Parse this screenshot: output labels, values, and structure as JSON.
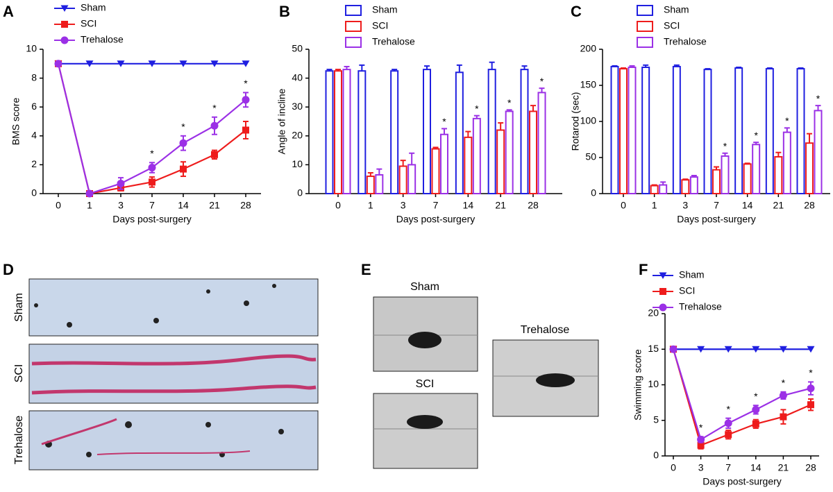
{
  "chart_data": [
    {
      "type": "line",
      "panel": "A",
      "ylabel": "BMS score",
      "xlabel": "Days post-surgery",
      "categories": [
        "0",
        "1",
        "3",
        "7",
        "14",
        "21",
        "28"
      ],
      "ylim": [
        0,
        10
      ],
      "yticks": [
        0,
        2,
        4,
        6,
        8,
        10
      ],
      "series": [
        {
          "name": "Sham",
          "color": "#1f1fe0",
          "marker": "triangle-down",
          "values": [
            9,
            9,
            9,
            9,
            9,
            9,
            9
          ]
        },
        {
          "name": "SCI",
          "color": "#ee1c1c",
          "marker": "square",
          "values": [
            9,
            0,
            0.4,
            0.8,
            1.7,
            2.7,
            4.4
          ],
          "errors": [
            0,
            0,
            0.2,
            0.35,
            0.5,
            0.3,
            0.6
          ]
        },
        {
          "name": "Trehalose",
          "color": "#9b30e6",
          "marker": "circle",
          "values": [
            9,
            0,
            0.7,
            1.8,
            3.5,
            4.7,
            6.5
          ],
          "errors": [
            0,
            0,
            0.4,
            0.35,
            0.5,
            0.6,
            0.5
          ],
          "significance": [
            null,
            null,
            null,
            "*",
            "*",
            "*",
            "*"
          ]
        }
      ]
    },
    {
      "type": "bar",
      "panel": "B",
      "ylabel": "Angle of incline",
      "xlabel": "Days post-surgery",
      "categories": [
        "0",
        "1",
        "3",
        "7",
        "14",
        "21",
        "28"
      ],
      "ylim": [
        0,
        50
      ],
      "yticks": [
        0,
        10,
        20,
        30,
        40,
        50
      ],
      "series": [
        {
          "name": "Sham",
          "color": "#1f1fe0",
          "values": [
            42.5,
            42.5,
            42.5,
            43,
            42,
            43,
            43
          ],
          "errors": [
            0.5,
            2,
            0.5,
            1.2,
            2.5,
            2.5,
            1.2
          ]
        },
        {
          "name": "SCI",
          "color": "#ee1c1c",
          "values": [
            42.5,
            6,
            9.5,
            15.5,
            19.5,
            22,
            28.5
          ],
          "errors": [
            0.5,
            1.2,
            2,
            0.5,
            2,
            2.5,
            2
          ]
        },
        {
          "name": "Trehalose",
          "color": "#9b30e6",
          "values": [
            43,
            6.5,
            10,
            20.5,
            26,
            28.5,
            35
          ],
          "errors": [
            1,
            2,
            4,
            2,
            1,
            0.5,
            1.5
          ],
          "significance": [
            null,
            null,
            null,
            "*",
            "*",
            "*",
            "*"
          ]
        }
      ]
    },
    {
      "type": "bar",
      "panel": "C",
      "ylabel": "Rotarod (sec)",
      "xlabel": "Days post-surgery",
      "categories": [
        "0",
        "1",
        "3",
        "7",
        "14",
        "21",
        "28"
      ],
      "ylim": [
        0,
        200
      ],
      "yticks": [
        0,
        50,
        100,
        150,
        200
      ],
      "series": [
        {
          "name": "Sham",
          "color": "#1f1fe0",
          "values": [
            176,
            175,
            176,
            172,
            174,
            173,
            173
          ],
          "errors": [
            1,
            3,
            2,
            1,
            1,
            1,
            1
          ]
        },
        {
          "name": "SCI",
          "color": "#ee1c1c",
          "values": [
            173,
            11,
            19,
            33,
            41,
            51,
            70
          ],
          "errors": [
            1,
            1,
            1,
            4,
            1,
            6,
            13
          ]
        },
        {
          "name": "Trehalose",
          "color": "#9b30e6",
          "values": [
            175,
            12,
            23,
            52,
            68,
            85,
            115
          ],
          "errors": [
            2,
            4,
            2,
            4,
            3,
            6,
            7
          ],
          "significance": [
            null,
            null,
            null,
            "*",
            "*",
            "*",
            "*"
          ]
        }
      ]
    },
    {
      "type": "line",
      "panel": "F",
      "ylabel": "Swimming score",
      "xlabel": "Days post-surgery",
      "categories": [
        "0",
        "3",
        "7",
        "14",
        "21",
        "28"
      ],
      "ylim": [
        0,
        20
      ],
      "yticks": [
        0,
        5,
        10,
        15,
        20
      ],
      "series": [
        {
          "name": "Sham",
          "color": "#1f1fe0",
          "marker": "triangle-down",
          "values": [
            15,
            15,
            15,
            15,
            15,
            15
          ]
        },
        {
          "name": "SCI",
          "color": "#ee1c1c",
          "marker": "square",
          "values": [
            15,
            1.5,
            3,
            4.5,
            5.5,
            7.2
          ],
          "errors": [
            0,
            0.5,
            0.6,
            0.6,
            1,
            0.8
          ]
        },
        {
          "name": "Trehalose",
          "color": "#9b30e6",
          "marker": "circle",
          "values": [
            15,
            2.3,
            4.6,
            6.5,
            8.5,
            9.5
          ],
          "errors": [
            0,
            0.4,
            0.7,
            0.6,
            0.5,
            0.9
          ],
          "significance": [
            null,
            "*",
            "*",
            "*",
            "*",
            "*"
          ]
        }
      ]
    }
  ],
  "photo_panels": [
    {
      "panel": "D",
      "labels": [
        "Sham",
        "SCI",
        "Trehalose"
      ]
    },
    {
      "panel": "E",
      "labels": [
        "Sham",
        "SCI",
        "Trehalose"
      ]
    }
  ]
}
